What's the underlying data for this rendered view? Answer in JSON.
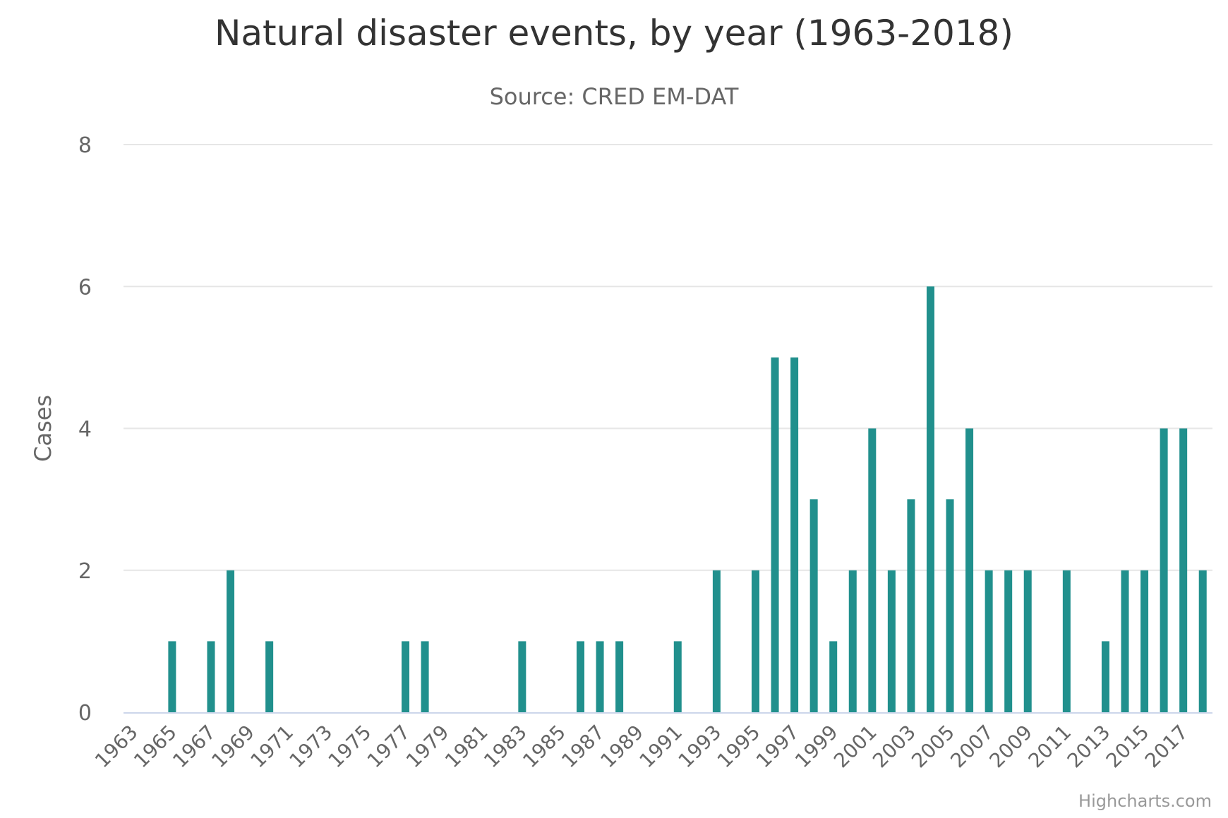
{
  "chart_data": {
    "type": "bar",
    "title": "Natural disaster events, by year (1963-2018)",
    "subtitle": "Source: CRED EM-DAT",
    "xlabel": "",
    "ylabel": "Cases",
    "ylim": [
      0,
      8
    ],
    "yticks": [
      0,
      2,
      4,
      6,
      8
    ],
    "grid": true,
    "categories": [
      "1963",
      "1964",
      "1965",
      "1966",
      "1967",
      "1968",
      "1969",
      "1970",
      "1971",
      "1972",
      "1973",
      "1974",
      "1975",
      "1976",
      "1977",
      "1978",
      "1979",
      "1980",
      "1981",
      "1982",
      "1983",
      "1984",
      "1985",
      "1986",
      "1987",
      "1988",
      "1989",
      "1990",
      "1991",
      "1992",
      "1993",
      "1994",
      "1995",
      "1996",
      "1997",
      "1998",
      "1999",
      "2000",
      "2001",
      "2002",
      "2003",
      "2004",
      "2005",
      "2006",
      "2007",
      "2008",
      "2009",
      "2010",
      "2011",
      "2012",
      "2013",
      "2014",
      "2015",
      "2016",
      "2017",
      "2018"
    ],
    "tick_labels": [
      "1963",
      "1965",
      "1967",
      "1969",
      "1971",
      "1973",
      "1975",
      "1977",
      "1979",
      "1981",
      "1983",
      "1985",
      "1987",
      "1989",
      "1991",
      "1993",
      "1995",
      "1997",
      "1999",
      "2001",
      "2003",
      "2005",
      "2007",
      "2009",
      "2011",
      "2013",
      "2015",
      "2017"
    ],
    "series": [
      {
        "name": "Cases",
        "color": "#21908d",
        "values": [
          0,
          0,
          1,
          0,
          1,
          2,
          0,
          1,
          0,
          0,
          0,
          0,
          0,
          0,
          1,
          1,
          0,
          0,
          0,
          0,
          1,
          0,
          0,
          1,
          1,
          1,
          0,
          0,
          1,
          0,
          2,
          0,
          2,
          5,
          5,
          3,
          1,
          2,
          4,
          2,
          3,
          6,
          3,
          4,
          2,
          2,
          2,
          0,
          2,
          0,
          1,
          2,
          2,
          4,
          4,
          2
        ]
      }
    ]
  },
  "credits": "Highcharts.com",
  "colors": {
    "bar": "#21908d",
    "grid": "#e6e6e6",
    "axis": "#ccd6eb",
    "label": "#666666"
  }
}
